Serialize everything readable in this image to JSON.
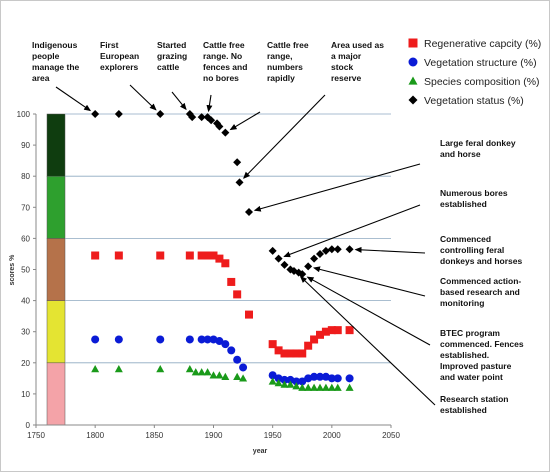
{
  "chart_data": {
    "type": "scatter",
    "xlabel": "year",
    "ylabel": "scores %",
    "xlim": [
      1750,
      2050
    ],
    "ylim": [
      0,
      100
    ],
    "xticks": [
      1750,
      1800,
      1850,
      1900,
      1950,
      2000,
      2050
    ],
    "yticks": [
      0,
      10,
      20,
      30,
      40,
      50,
      60,
      70,
      80,
      90,
      100
    ],
    "grid": "horizontal at 20, 40, 60, 80, 100",
    "legend_position": "top-right",
    "colors": {
      "band_0_20": "#f4a3a8",
      "band_20_40": "#e4e432",
      "band_40_60": "#b5724a",
      "band_60_80": "#2ea02e",
      "band_80_100": "#0f3d0f",
      "gridline": "#8ea9c0"
    },
    "series": [
      {
        "name": "Regenerative capcity (%)",
        "marker": "square",
        "color": "#ee1c1c",
        "points": [
          [
            1800,
            54.5
          ],
          [
            1820,
            54.5
          ],
          [
            1855,
            54.5
          ],
          [
            1880,
            54.5
          ],
          [
            1890,
            54.5
          ],
          [
            1895,
            54.5
          ],
          [
            1900,
            54.5
          ],
          [
            1905,
            53.5
          ],
          [
            1910,
            52
          ],
          [
            1915,
            46
          ],
          [
            1920,
            42
          ],
          [
            1930,
            35.5
          ],
          [
            1950,
            26
          ],
          [
            1955,
            24
          ],
          [
            1960,
            23
          ],
          [
            1965,
            23
          ],
          [
            1970,
            23
          ],
          [
            1975,
            23
          ],
          [
            1980,
            25.5
          ],
          [
            1985,
            27.5
          ],
          [
            1990,
            29
          ],
          [
            1995,
            30
          ],
          [
            2000,
            30.5
          ],
          [
            2005,
            30.5
          ],
          [
            2015,
            30.5
          ]
        ]
      },
      {
        "name": "Vegetation structure (%)",
        "marker": "circle",
        "color": "#0a1bd6",
        "points": [
          [
            1800,
            27.5
          ],
          [
            1820,
            27.5
          ],
          [
            1855,
            27.5
          ],
          [
            1880,
            27.5
          ],
          [
            1890,
            27.5
          ],
          [
            1895,
            27.5
          ],
          [
            1900,
            27.5
          ],
          [
            1905,
            27
          ],
          [
            1910,
            26
          ],
          [
            1915,
            24
          ],
          [
            1920,
            21
          ],
          [
            1925,
            18.5
          ],
          [
            1950,
            16
          ],
          [
            1955,
            15
          ],
          [
            1960,
            14.5
          ],
          [
            1965,
            14.5
          ],
          [
            1970,
            14
          ],
          [
            1975,
            14
          ],
          [
            1980,
            15
          ],
          [
            1985,
            15.5
          ],
          [
            1990,
            15.5
          ],
          [
            1995,
            15.5
          ],
          [
            2000,
            15
          ],
          [
            2005,
            15
          ],
          [
            2015,
            15
          ]
        ]
      },
      {
        "name": "Species composition (%)",
        "marker": "triangle",
        "color": "#1a9a1a",
        "points": [
          [
            1800,
            18
          ],
          [
            1820,
            18
          ],
          [
            1855,
            18
          ],
          [
            1880,
            18
          ],
          [
            1885,
            17
          ],
          [
            1890,
            17
          ],
          [
            1895,
            17
          ],
          [
            1900,
            16
          ],
          [
            1905,
            16
          ],
          [
            1910,
            15.5
          ],
          [
            1920,
            15.5
          ],
          [
            1925,
            15
          ],
          [
            1950,
            14
          ],
          [
            1955,
            13.5
          ],
          [
            1960,
            13
          ],
          [
            1965,
            13
          ],
          [
            1970,
            12.5
          ],
          [
            1975,
            12
          ],
          [
            1980,
            12
          ],
          [
            1985,
            12
          ],
          [
            1990,
            12
          ],
          [
            1995,
            12
          ],
          [
            2000,
            12
          ],
          [
            2005,
            12
          ],
          [
            2015,
            12
          ]
        ]
      },
      {
        "name": "Vegetation status (%)",
        "marker": "diamond",
        "color": "#000000",
        "points": [
          [
            1800,
            100
          ],
          [
            1820,
            100
          ],
          [
            1855,
            100
          ],
          [
            1880,
            100
          ],
          [
            1882,
            99
          ],
          [
            1890,
            99
          ],
          [
            1895,
            99
          ],
          [
            1898,
            98
          ],
          [
            1903,
            97
          ],
          [
            1905,
            96
          ],
          [
            1910,
            94
          ],
          [
            1920,
            84.5
          ],
          [
            1922,
            78
          ],
          [
            1930,
            68.5
          ],
          [
            1950,
            56
          ],
          [
            1955,
            53.5
          ],
          [
            1960,
            51.5
          ],
          [
            1965,
            50
          ],
          [
            1968,
            49.5
          ],
          [
            1972,
            49
          ],
          [
            1975,
            48.5
          ],
          [
            1980,
            51
          ],
          [
            1985,
            53.5
          ],
          [
            1990,
            55
          ],
          [
            1995,
            56
          ],
          [
            2000,
            56.5
          ],
          [
            2005,
            56.5
          ],
          [
            2015,
            56.5
          ]
        ]
      }
    ],
    "annotations": [
      {
        "lines": [
          "Indigenous",
          "people",
          "manage the",
          "area"
        ],
        "points_to": [
          1800,
          100
        ]
      },
      {
        "lines": [
          "First",
          "European",
          "explorers"
        ],
        "points_to": [
          1855,
          100
        ]
      },
      {
        "lines": [
          "Started",
          "grazing",
          "cattle"
        ],
        "points_to": [
          1880,
          100
        ]
      },
      {
        "lines": [
          "Cattle free",
          "range. No",
          "fences and",
          "no bores"
        ],
        "points_to": [
          1895,
          99
        ]
      },
      {
        "lines": [
          "Cattle free",
          "range,",
          "numbers",
          "rapidly"
        ],
        "points_to": [
          1910,
          94
        ]
      },
      {
        "lines": [
          "Area used as",
          "a major",
          "stock",
          "reserve"
        ],
        "points_to": [
          1922,
          78
        ]
      },
      {
        "lines": [
          "Large feral donkey",
          "and horse"
        ],
        "points_to": [
          1930,
          68.5
        ]
      },
      {
        "lines": [
          "Numerous bores",
          "established"
        ],
        "points_to": [
          1955,
          53.5
        ]
      },
      {
        "lines": [
          "Commenced",
          "controlling feral",
          "donkeys and horses"
        ],
        "points_to": [
          2015,
          56.5
        ]
      },
      {
        "lines": [
          "Commenced action-",
          "based research and",
          "monitoring"
        ],
        "points_to": [
          1980,
          51
        ]
      },
      {
        "lines": [
          "BTEC program",
          "commenced. Fences",
          "established.",
          "Improved pasture",
          "and water point"
        ],
        "points_to": [
          1975,
          48.5
        ]
      },
      {
        "lines": [
          "Research station",
          "established"
        ],
        "points_to": [
          1970,
          49
        ]
      }
    ]
  }
}
